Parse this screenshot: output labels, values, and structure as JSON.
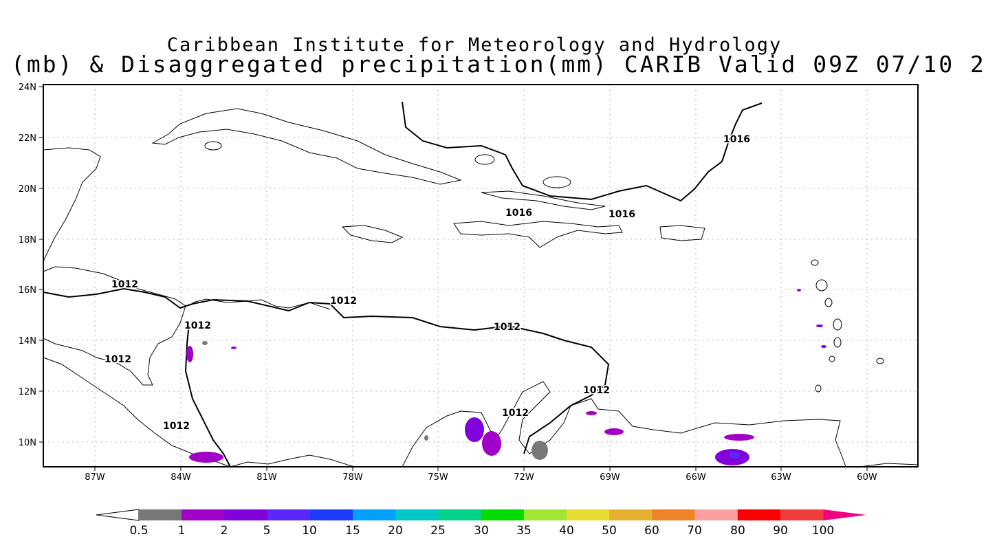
{
  "title": {
    "line1": "Caribbean Institute for Meteorology and Hydrology",
    "line2": "(mb) & Disaggregated precipitation(mm) CARIB Valid 09Z 07/10 2"
  },
  "map": {
    "lon_ticks": [
      "87W",
      "84W",
      "81W",
      "78W",
      "75W",
      "72W",
      "69W",
      "66W",
      "63W",
      "60W"
    ],
    "lat_ticks": [
      "10N",
      "12N",
      "14N",
      "16N",
      "18N",
      "20N",
      "22N",
      "24N"
    ],
    "isobar_labels": [
      "1016",
      "1016",
      "1016",
      "1012",
      "1012",
      "1012",
      "1012",
      "1012",
      "1012",
      "1012",
      "1012"
    ],
    "grid": true
  },
  "colorbar": {
    "labels": [
      "0.5",
      "1",
      "2",
      "5",
      "10",
      "15",
      "20",
      "25",
      "30",
      "35",
      "40",
      "50",
      "60",
      "70",
      "80",
      "90",
      "100"
    ],
    "colors": [
      "#787878",
      "#a000c8",
      "#8200dc",
      "#5a28ff",
      "#1e3cff",
      "#00a0ff",
      "#00c8c8",
      "#00d28c",
      "#00dc00",
      "#a0e632",
      "#e6dc32",
      "#e6af2d",
      "#f08228",
      "#faa0a0",
      "#fa0000",
      "#f03c3c",
      "#f00082"
    ]
  }
}
